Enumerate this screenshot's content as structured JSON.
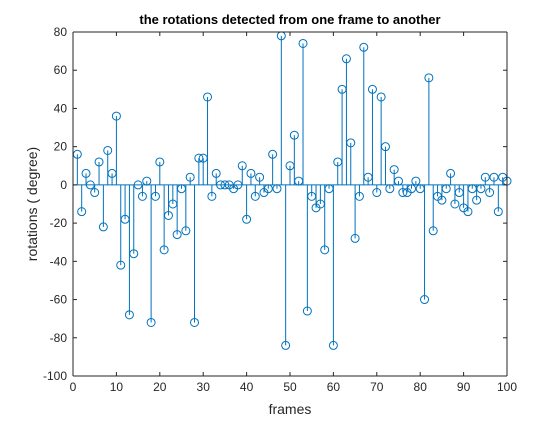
{
  "chart_data": {
    "type": "stem",
    "title": "the rotations detected from one frame to another",
    "xlabel": "frames",
    "ylabel": "rotations ( degree)",
    "xlim": [
      0,
      100
    ],
    "ylim": [
      -100,
      80
    ],
    "xticks": [
      0,
      10,
      20,
      30,
      40,
      50,
      60,
      70,
      80,
      90,
      100
    ],
    "yticks": [
      -100,
      -80,
      -60,
      -40,
      -20,
      0,
      20,
      40,
      60,
      80
    ],
    "grid": false,
    "colors": {
      "series": "#0072bd",
      "axis": "#262626"
    },
    "series": [
      {
        "x": [
          1,
          2,
          3,
          4,
          5,
          6,
          7,
          8,
          9,
          10,
          11,
          12,
          13,
          14,
          15,
          16,
          17,
          18,
          19,
          20,
          21,
          22,
          23,
          24,
          25,
          26,
          27,
          28,
          29,
          30,
          31,
          32,
          33,
          34,
          35,
          36,
          37,
          38,
          39,
          40,
          41,
          42,
          43,
          44,
          45,
          46,
          47,
          48,
          49,
          50,
          51,
          52,
          53,
          54,
          55,
          56,
          57,
          58,
          59,
          60,
          61,
          62,
          63,
          64,
          65,
          66,
          67,
          68,
          69,
          70,
          71,
          72,
          73,
          74,
          75,
          76,
          77,
          78,
          79,
          80,
          81,
          82,
          83,
          84,
          85,
          86,
          87,
          88,
          89,
          90,
          91,
          92,
          93,
          94,
          95,
          96,
          97,
          98,
          99,
          100
        ],
        "values": [
          16,
          -14,
          6,
          0,
          -4,
          12,
          -22,
          18,
          6,
          36,
          -42,
          -18,
          -68,
          -36,
          0,
          -6,
          2,
          -72,
          -6,
          12,
          -34,
          -16,
          -10,
          -26,
          -2,
          -24,
          4,
          -72,
          14,
          14,
          46,
          -6,
          6,
          0,
          0,
          0,
          -2,
          0,
          10,
          -18,
          6,
          -6,
          4,
          -4,
          -2,
          16,
          -2,
          78,
          -84,
          10,
          26,
          2,
          74,
          -66,
          -6,
          -12,
          -10,
          -34,
          -2,
          -84,
          12,
          50,
          66,
          22,
          -28,
          -6,
          72,
          4,
          50,
          -4,
          46,
          20,
          -2,
          8,
          2,
          -4,
          -4,
          -2,
          2,
          -2,
          -60,
          56,
          -24,
          -6,
          -8,
          -2,
          6,
          -10,
          -4,
          -12,
          -14,
          -2,
          -8,
          -2,
          4,
          -4,
          4,
          -14,
          4,
          2
        ]
      }
    ]
  }
}
